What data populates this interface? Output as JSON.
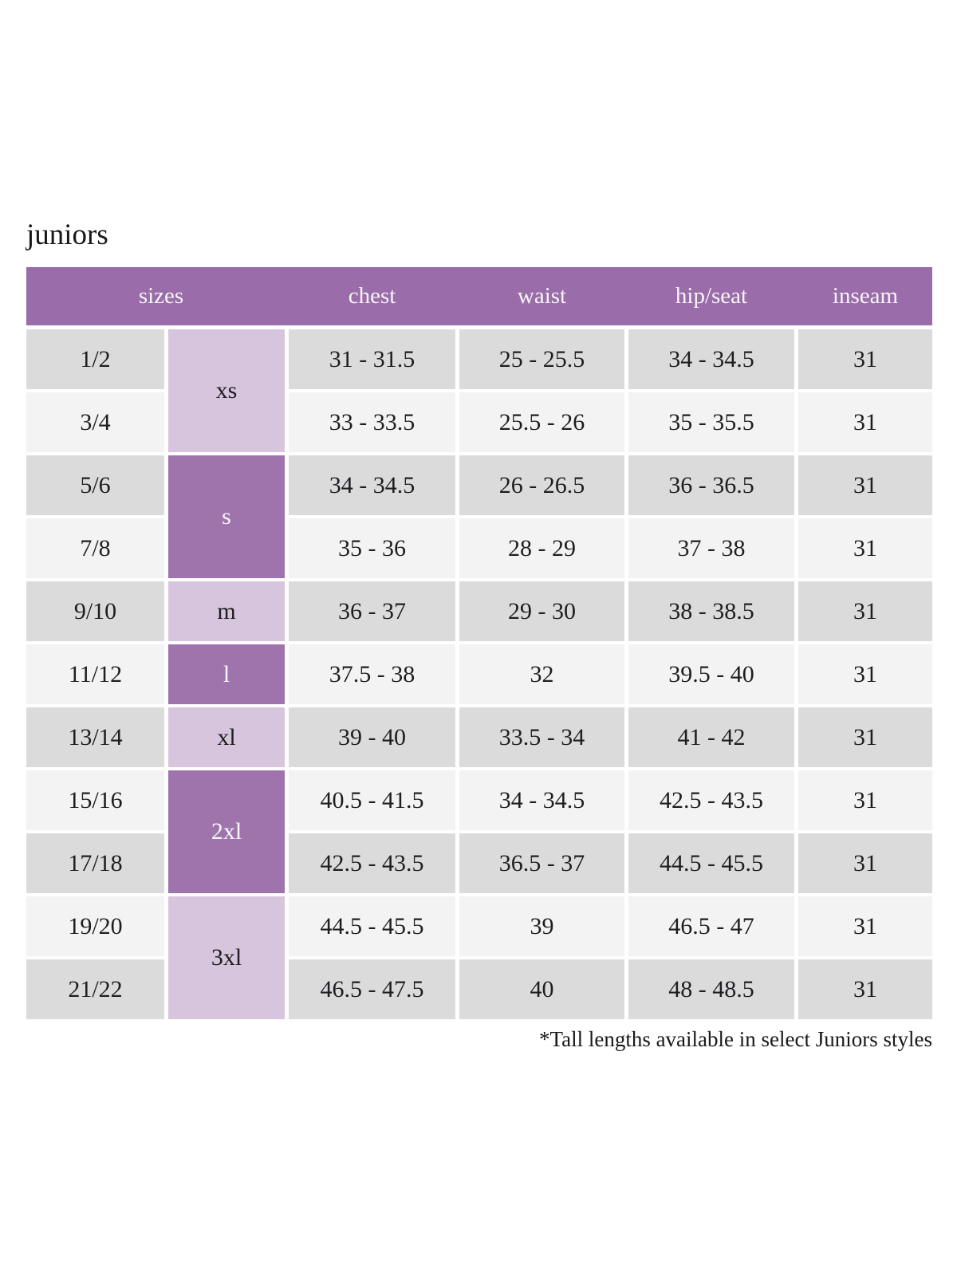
{
  "chart_data": {
    "type": "table",
    "title": "juniors",
    "columns": [
      "sizes",
      "chest",
      "waist",
      "hip/seat",
      "inseam"
    ],
    "size_groups": [
      {
        "label": "xs",
        "span": 2,
        "shade": "light"
      },
      {
        "label": "s",
        "span": 2,
        "shade": "dark"
      },
      {
        "label": "m",
        "span": 1,
        "shade": "light"
      },
      {
        "label": "l",
        "span": 1,
        "shade": "dark"
      },
      {
        "label": "xl",
        "span": 1,
        "shade": "light"
      },
      {
        "label": "2xl",
        "span": 2,
        "shade": "dark"
      },
      {
        "label": "3xl",
        "span": 2,
        "shade": "light"
      }
    ],
    "rows": [
      {
        "size": "1/2",
        "group": "xs",
        "chest": "31 - 31.5",
        "waist": "25 - 25.5",
        "hip_seat": "34 - 34.5",
        "inseam": "31"
      },
      {
        "size": "3/4",
        "group": "xs",
        "chest": "33 - 33.5",
        "waist": "25.5 - 26",
        "hip_seat": "35 - 35.5",
        "inseam": "31"
      },
      {
        "size": "5/6",
        "group": "s",
        "chest": "34 - 34.5",
        "waist": "26 - 26.5",
        "hip_seat": "36 - 36.5",
        "inseam": "31"
      },
      {
        "size": "7/8",
        "group": "s",
        "chest": "35 - 36",
        "waist": "28 - 29",
        "hip_seat": "37 - 38",
        "inseam": "31"
      },
      {
        "size": "9/10",
        "group": "m",
        "chest": "36 - 37",
        "waist": "29 - 30",
        "hip_seat": "38 - 38.5",
        "inseam": "31"
      },
      {
        "size": "11/12",
        "group": "l",
        "chest": "37.5 - 38",
        "waist": "32",
        "hip_seat": "39.5 - 40",
        "inseam": "31"
      },
      {
        "size": "13/14",
        "group": "xl",
        "chest": "39 - 40",
        "waist": "33.5 - 34",
        "hip_seat": "41 - 42",
        "inseam": "31"
      },
      {
        "size": "15/16",
        "group": "2xl",
        "chest": "40.5 - 41.5",
        "waist": "34 - 34.5",
        "hip_seat": "42.5 - 43.5",
        "inseam": "31"
      },
      {
        "size": "17/18",
        "group": "2xl",
        "chest": "42.5 - 43.5",
        "waist": "36.5 - 37",
        "hip_seat": "44.5 - 45.5",
        "inseam": "31"
      },
      {
        "size": "19/20",
        "group": "3xl",
        "chest": "44.5 - 45.5",
        "waist": "39",
        "hip_seat": "46.5 - 47",
        "inseam": "31"
      },
      {
        "size": "21/22",
        "group": "3xl",
        "chest": "46.5 - 47.5",
        "waist": "40",
        "hip_seat": "48 - 48.5",
        "inseam": "31"
      }
    ],
    "footnote": "*Tall lengths available in select Juniors styles"
  },
  "colors": {
    "header_bg": "#9a6caa",
    "header_text": "#f8f5f8",
    "size_cell_dark": "#9f74ad",
    "size_cell_light": "#d7c5dd",
    "row_shade_gray": "#dcdbdc",
    "row_shade_light": "#f4f3f4",
    "body_text": "#1f1d20",
    "page_bg": "#ffffff"
  }
}
